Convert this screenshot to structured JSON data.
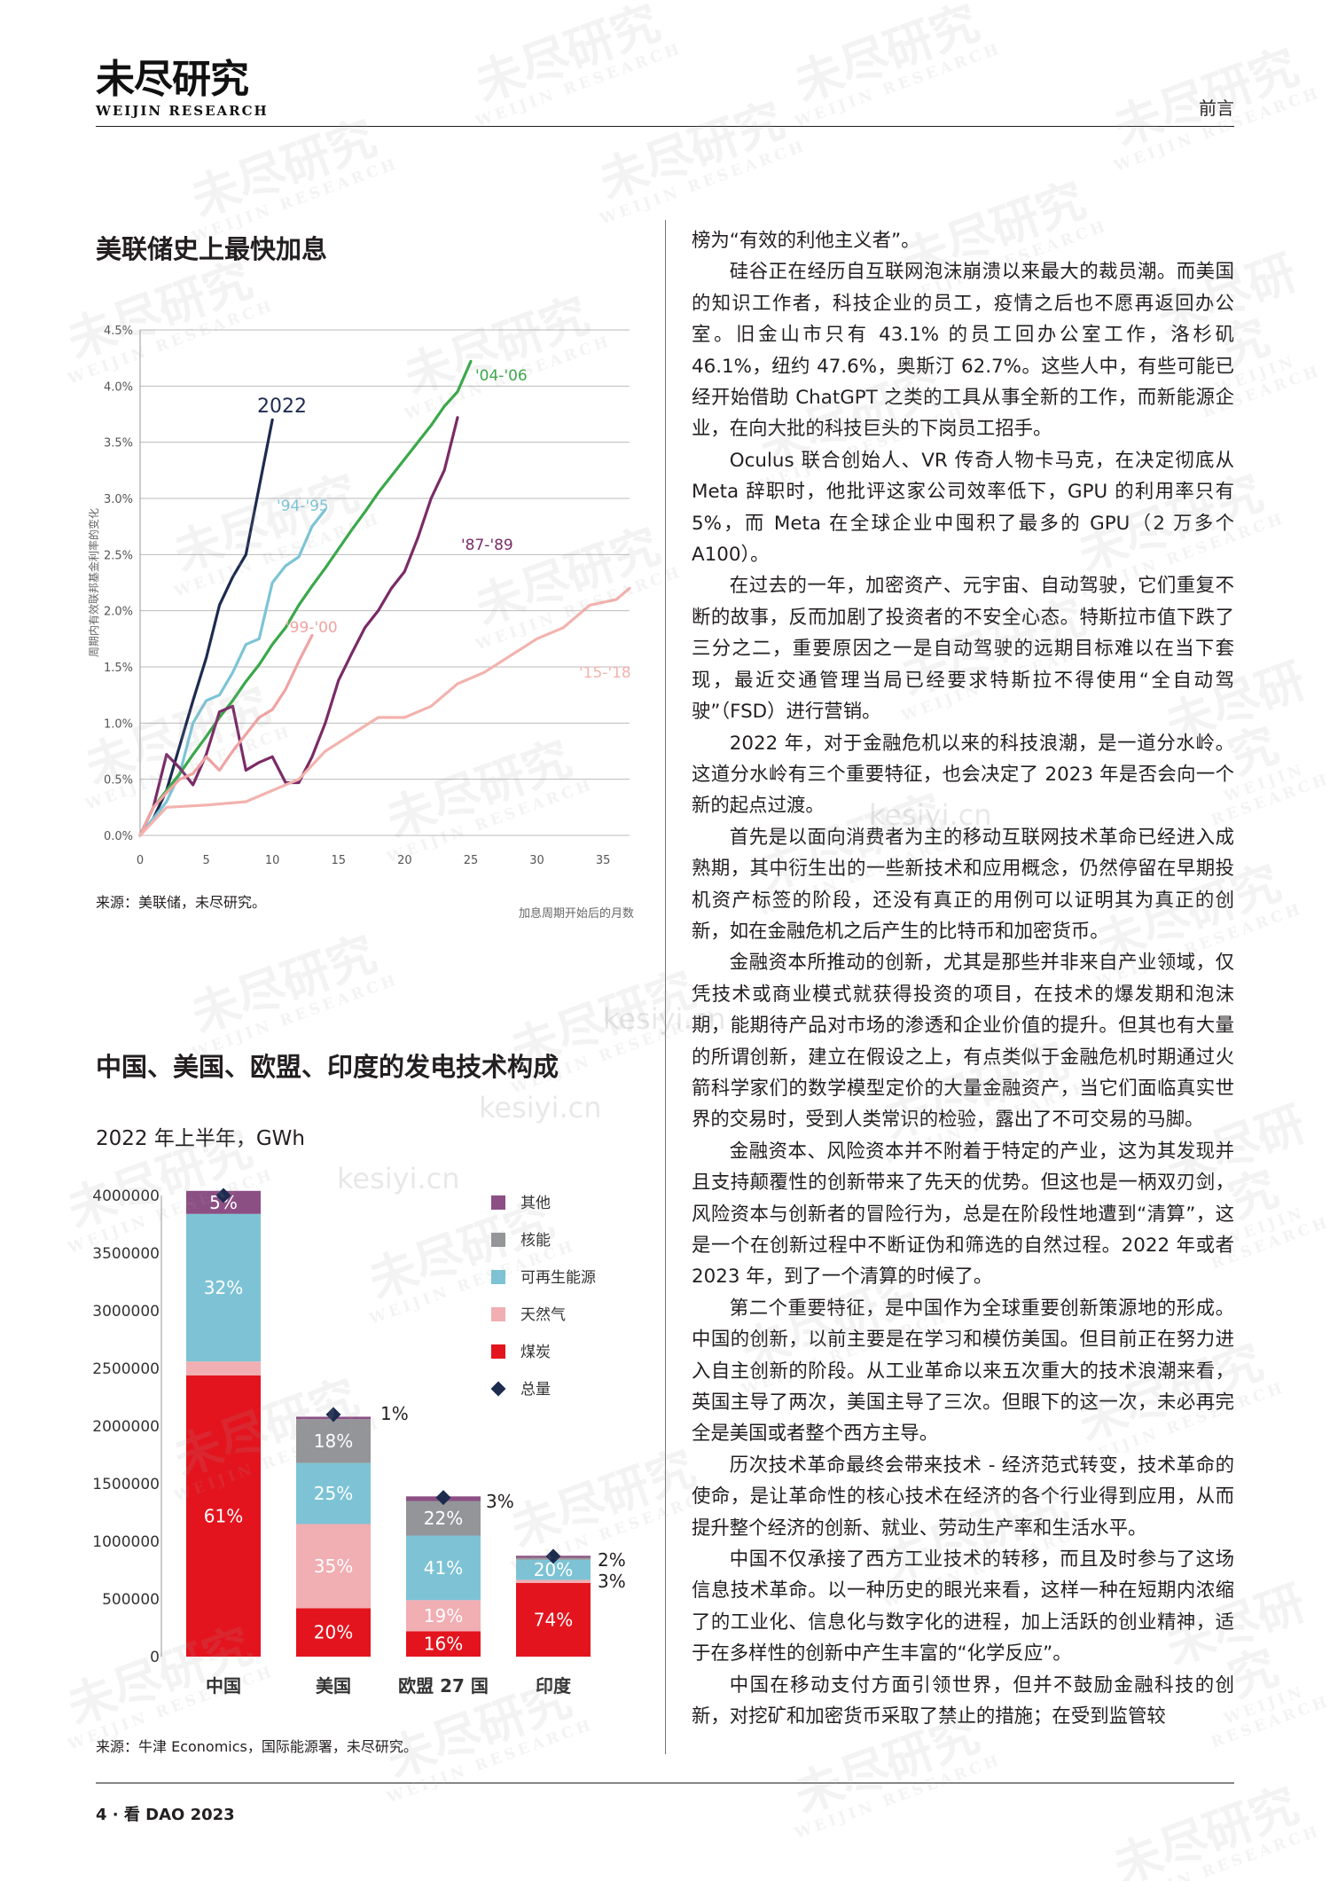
{
  "header": {
    "logo_cn": "未尽研究",
    "logo_en": "WEIJIN RESEARCH",
    "section": "前言"
  },
  "footer": {
    "text": "4 · 看 DAO 2023"
  },
  "watermark": {
    "cn": "未尽研究",
    "en": "WEIJIN RESEARCH",
    "site": "kesiyi.cn"
  },
  "chart1": {
    "title": "美联储史上最快加息",
    "source": "来源：美联储，未尽研究。",
    "chart_data": {
      "type": "line",
      "xlabel": "加息周期开始后的月数",
      "ylabel": "周期内有效联邦基金利率的变化",
      "xlim": [
        0,
        37
      ],
      "ylim": [
        0,
        4.5
      ],
      "xticks": [
        0,
        5,
        10,
        15,
        20,
        25,
        30,
        35
      ],
      "yticks": [
        "0.0%",
        "0.5%",
        "1.0%",
        "1.5%",
        "2.0%",
        "2.5%",
        "3.0%",
        "3.5%",
        "4.0%",
        "4.5%"
      ],
      "series": [
        {
          "name": "2022",
          "color": "#1d2b4f",
          "x": [
            0,
            1,
            2,
            3,
            4,
            5,
            6,
            7,
            8,
            9,
            10
          ],
          "y": [
            0,
            0.15,
            0.4,
            0.8,
            1.2,
            1.58,
            2.05,
            2.3,
            2.5,
            3.1,
            3.7
          ]
        },
        {
          "name": "'94-'95",
          "color": "#7cc4d6",
          "x": [
            0,
            1,
            2,
            3,
            4,
            5,
            6,
            7,
            8,
            9,
            10,
            11,
            12,
            13,
            14
          ],
          "y": [
            0,
            0.15,
            0.3,
            0.55,
            1.0,
            1.2,
            1.25,
            1.45,
            1.7,
            1.75,
            2.25,
            2.4,
            2.48,
            2.75,
            2.9
          ]
        },
        {
          "name": "'04-'06",
          "color": "#3aa84a",
          "x": [
            0,
            1,
            2,
            3,
            4,
            5,
            6,
            7,
            8,
            9,
            10,
            11,
            12,
            13,
            14,
            15,
            16,
            17,
            18,
            19,
            20,
            21,
            22,
            23,
            24,
            25
          ],
          "y": [
            0,
            0.25,
            0.4,
            0.55,
            0.72,
            0.88,
            1.05,
            1.2,
            1.37,
            1.52,
            1.7,
            1.85,
            2.05,
            2.22,
            2.38,
            2.55,
            2.72,
            2.88,
            3.05,
            3.2,
            3.35,
            3.5,
            3.65,
            3.82,
            3.95,
            4.22
          ]
        },
        {
          "name": "'87-'89",
          "color": "#7a2b67",
          "x": [
            0,
            1,
            2,
            3,
            4,
            5,
            6,
            7,
            8,
            9,
            10,
            11,
            12,
            13,
            14,
            15,
            16,
            17,
            18,
            19,
            20,
            21,
            22,
            23,
            24
          ],
          "y": [
            0,
            0.25,
            0.72,
            0.6,
            0.45,
            0.72,
            1.1,
            1.15,
            0.58,
            0.65,
            0.7,
            0.47,
            0.47,
            0.7,
            1.0,
            1.38,
            1.62,
            1.85,
            2.0,
            2.2,
            2.35,
            2.65,
            3.0,
            3.25,
            3.72
          ]
        },
        {
          "name": "'99-'00",
          "color": "#f0a3a3",
          "x": [
            0,
            1,
            2,
            3,
            4,
            5,
            6,
            7,
            8,
            9,
            10,
            11,
            12,
            13
          ],
          "y": [
            0,
            0.25,
            0.38,
            0.5,
            0.55,
            0.7,
            0.58,
            0.75,
            0.9,
            1.05,
            1.12,
            1.3,
            1.55,
            1.78
          ]
        },
        {
          "name": "'15-'18",
          "color": "#f2b3ae",
          "x": [
            0,
            2,
            5,
            8,
            12,
            14,
            16,
            18,
            20,
            22,
            24,
            26,
            28,
            30,
            32,
            34,
            36,
            37
          ],
          "y": [
            0,
            0.25,
            0.27,
            0.3,
            0.5,
            0.75,
            0.9,
            1.05,
            1.05,
            1.15,
            1.35,
            1.45,
            1.6,
            1.75,
            1.85,
            2.05,
            2.1,
            2.2
          ]
        }
      ]
    }
  },
  "chart2": {
    "title": "中国、美国、欧盟、印度的发电技术构成",
    "subtitle": "2022 年上半年，GWh",
    "source": "来源：牛津 Economics，国际能源署，未尽研究。",
    "chart_data": {
      "type": "bar",
      "stacked": true,
      "categories": [
        "中国",
        "美国",
        "欧盟 27 国",
        "印度"
      ],
      "ylim": [
        0,
        4000000
      ],
      "yticks": [
        "0",
        "500000",
        "1000000",
        "1500000",
        "2000000",
        "2500000",
        "3000000",
        "3500000",
        "4000000"
      ],
      "totals": [
        4000000,
        2100000,
        1380000,
        870000
      ],
      "series": [
        {
          "name": "煤炭",
          "color": "#e3141e",
          "labels": [
            "61%",
            "20%",
            "16%",
            "74%"
          ],
          "values": [
            2440000,
            420000,
            220000,
            640000
          ]
        },
        {
          "name": "天然气",
          "color": "#f1aeb3",
          "labels": [
            "3%",
            "35%",
            "19%",
            "3%"
          ],
          "values": [
            120000,
            730000,
            270000,
            26000
          ]
        },
        {
          "name": "可再生能源",
          "color": "#7dc3d5",
          "labels": [
            "32%",
            "25%",
            "41%",
            "20%"
          ],
          "values": [
            1280000,
            530000,
            560000,
            174000
          ]
        },
        {
          "name": "核能",
          "color": "#939598",
          "labels": [
            "",
            "18%",
            "22%",
            ""
          ],
          "values": [
            0,
            380000,
            300000,
            18000
          ]
        },
        {
          "name": "其他",
          "color": "#8b4f84",
          "labels": [
            "5%",
            "1%",
            "3%",
            "2%"
          ],
          "values": [
            200000,
            21000,
            40000,
            17000
          ]
        }
      ],
      "total_series_name": "总量",
      "total_color": "#1d2b4f",
      "outside_labels": [
        {
          "bar": 1,
          "text": "1%"
        },
        {
          "bar": 2,
          "text": "3%"
        },
        {
          "bar": 3,
          "text": "2%"
        },
        {
          "bar": 3,
          "text": "3%"
        }
      ]
    }
  },
  "body": {
    "paragraphs": [
      {
        "cont": true,
        "text": "榜为“有效的利他主义者”。"
      },
      {
        "text": "硅谷正在经历自互联网泡沫崩溃以来最大的裁员潮。而美国的知识工作者，科技企业的员工，疫情之后也不愿再返回办公室。旧金山市只有 43.1% 的员工回办公室工作，洛杉矶 46.1%，纽约 47.6%，奥斯汀 62.7%。这些人中，有些可能已经开始借助 ChatGPT 之类的工具从事全新的工作，而新能源企业，在向大批的科技巨头的下岗员工招手。"
      },
      {
        "text": "Oculus 联合创始人、VR 传奇人物卡马克，在决定彻底从 Meta 辞职时，他批评这家公司效率低下，GPU 的利用率只有 5%，而 Meta 在全球企业中囤积了最多的 GPU（2 万多个 A100）。"
      },
      {
        "text": "在过去的一年，加密资产、元宇宙、自动驾驶，它们重复不断的故事，反而加剧了投资者的不安全心态。特斯拉市值下跌了三分之二，重要原因之一是自动驾驶的远期目标难以在当下套现，最近交通管理当局已经要求特斯拉不得使用“全自动驾驶”（FSD）进行营销。"
      },
      {
        "text": "2022 年，对于金融危机以来的科技浪潮，是一道分水岭。这道分水岭有三个重要特征，也会决定了 2023 年是否会向一个新的起点过渡。"
      },
      {
        "text": "首先是以面向消费者为主的移动互联网技术革命已经进入成熟期，其中衍生出的一些新技术和应用概念，仍然停留在早期投机资产标签的阶段，还没有真正的用例可以证明其为真正的创新，如在金融危机之后产生的比特币和加密货币。"
      },
      {
        "text": "金融资本所推动的创新，尤其是那些并非来自产业领域，仅凭技术或商业模式就获得投资的项目，在技术的爆发期和泡沫期，能期待产品对市场的渗透和企业价值的提升。但其也有大量的所谓创新，建立在假设之上，有点类似于金融危机时期通过火箭科学家们的数学模型定价的大量金融资产，当它们面临真实世界的交易时，受到人类常识的检验，露出了不可交易的马脚。"
      },
      {
        "text": "金融资本、风险资本并不附着于特定的产业，这为其发现并且支持颠覆性的创新带来了先天的优势。但这也是一柄双刃剑，风险资本与创新者的冒险行为，总是在阶段性地遭到“清算”，这是一个在创新过程中不断证伪和筛选的自然过程。2022 年或者 2023 年，到了一个清算的时候了。"
      },
      {
        "text": "第二个重要特征，是中国作为全球重要创新策源地的形成。中国的创新，以前主要是在学习和模仿美国。但目前正在努力进入自主创新的阶段。从工业革命以来五次重大的技术浪潮来看，英国主导了两次，美国主导了三次。但眼下的这一次，未必再完全是美国或者整个西方主导。"
      },
      {
        "text": "历次技术革命最终会带来技术 - 经济范式转变，技术革命的使命，是让革命性的核心技术在经济的各个行业得到应用，从而提升整个经济的创新、就业、劳动生产率和生活水平。"
      },
      {
        "text": "中国不仅承接了西方工业技术的转移，而且及时参与了这场信息技术革命。以一种历史的眼光来看，这样一种在短期内浓缩了的工业化、信息化与数字化的进程，加上活跃的创业精神，适于在多样性的创新中产生丰富的“化学反应”。"
      },
      {
        "text": "中国在移动支付方面引领世界，但并不鼓励金融科技的创新，对挖矿和加密货币采取了禁止的措施；在受到监管较"
      }
    ]
  }
}
